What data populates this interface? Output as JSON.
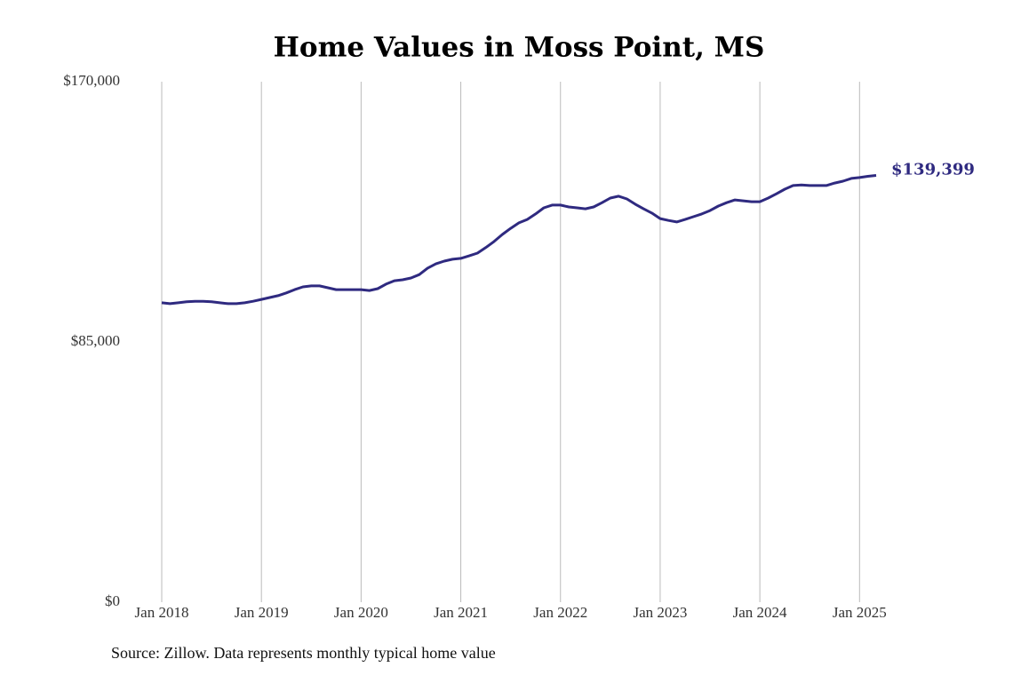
{
  "chart_data": {
    "type": "line",
    "title": "Home Values in Moss Point, MS",
    "source": "Source: Zillow. Data represents monthly typical home value",
    "x": [
      "2018-01",
      "2018-02",
      "2018-03",
      "2018-04",
      "2018-05",
      "2018-06",
      "2018-07",
      "2018-08",
      "2018-09",
      "2018-10",
      "2018-11",
      "2018-12",
      "2019-01",
      "2019-02",
      "2019-03",
      "2019-04",
      "2019-05",
      "2019-06",
      "2019-07",
      "2019-08",
      "2019-09",
      "2019-10",
      "2019-11",
      "2019-12",
      "2020-01",
      "2020-02",
      "2020-03",
      "2020-04",
      "2020-05",
      "2020-06",
      "2020-07",
      "2020-08",
      "2020-09",
      "2020-10",
      "2020-11",
      "2020-12",
      "2021-01",
      "2021-02",
      "2021-03",
      "2021-04",
      "2021-05",
      "2021-06",
      "2021-07",
      "2021-08",
      "2021-09",
      "2021-10",
      "2021-11",
      "2021-12",
      "2022-01",
      "2022-02",
      "2022-03",
      "2022-04",
      "2022-05",
      "2022-06",
      "2022-07",
      "2022-08",
      "2022-09",
      "2022-10",
      "2022-11",
      "2022-12",
      "2023-01",
      "2023-02",
      "2023-03",
      "2023-04",
      "2023-05",
      "2023-06",
      "2023-07",
      "2023-08",
      "2023-09",
      "2023-10",
      "2023-11",
      "2023-12",
      "2024-01",
      "2024-02",
      "2024-03",
      "2024-04",
      "2024-05",
      "2024-06",
      "2024-07",
      "2024-08",
      "2024-09",
      "2024-10",
      "2024-11",
      "2024-12",
      "2025-01",
      "2025-02",
      "2025-03"
    ],
    "series": [
      {
        "name": "Typical home value",
        "color": "#2f2a80",
        "values": [
          97800,
          97500,
          97800,
          98100,
          98300,
          98300,
          98100,
          97800,
          97500,
          97500,
          97800,
          98300,
          98900,
          99500,
          100100,
          101000,
          102100,
          103000,
          103300,
          103300,
          102700,
          102100,
          102100,
          102100,
          102100,
          101800,
          102400,
          103900,
          105000,
          105300,
          105900,
          107000,
          109100,
          110500,
          111400,
          112000,
          112300,
          113100,
          114000,
          115800,
          117800,
          120100,
          122100,
          123900,
          125000,
          126800,
          128800,
          129700,
          129700,
          129100,
          128800,
          128500,
          129100,
          130500,
          132000,
          132600,
          131700,
          130000,
          128500,
          127100,
          125300,
          124700,
          124200,
          125000,
          125900,
          126800,
          127900,
          129400,
          130500,
          131400,
          131100,
          130800,
          130800,
          132000,
          133400,
          134900,
          136100,
          136300,
          136100,
          136100,
          136100,
          136900,
          137500,
          138400,
          138700,
          139100,
          139399
        ],
        "value_labels": [
          null,
          null,
          null,
          null,
          null,
          null,
          null,
          null,
          null,
          null,
          null,
          null,
          null,
          null,
          null,
          null,
          null,
          null,
          null,
          null,
          null,
          null,
          null,
          null,
          null,
          null,
          null,
          null,
          null,
          null,
          null,
          null,
          null,
          null,
          null,
          null,
          null,
          null,
          null,
          null,
          null,
          null,
          null,
          null,
          null,
          null,
          null,
          null,
          null,
          null,
          null,
          null,
          null,
          null,
          null,
          null,
          null,
          null,
          null,
          null,
          null,
          null,
          null,
          null,
          null,
          null,
          null,
          null,
          null,
          null,
          null,
          null,
          null,
          null,
          null,
          null,
          null,
          null,
          null,
          null,
          null,
          null,
          null,
          null,
          null,
          null,
          "$139,399"
        ]
      }
    ],
    "xlim": [
      "2018-01",
      "2025-03"
    ],
    "xticks": [
      {
        "value": "2018-01",
        "label": "Jan 2018"
      },
      {
        "value": "2019-01",
        "label": "Jan 2019"
      },
      {
        "value": "2020-01",
        "label": "Jan 2020"
      },
      {
        "value": "2021-01",
        "label": "Jan 2021"
      },
      {
        "value": "2022-01",
        "label": "Jan 2022"
      },
      {
        "value": "2023-01",
        "label": "Jan 2023"
      },
      {
        "value": "2024-01",
        "label": "Jan 2024"
      },
      {
        "value": "2025-01",
        "label": "Jan 2025"
      }
    ],
    "ylim": [
      0,
      170000
    ],
    "yticks": [
      {
        "value": 0,
        "label": "$0"
      },
      {
        "value": 85000,
        "label": "$85,000"
      },
      {
        "value": 170000,
        "label": "$170,000"
      }
    ],
    "grid": "x"
  }
}
